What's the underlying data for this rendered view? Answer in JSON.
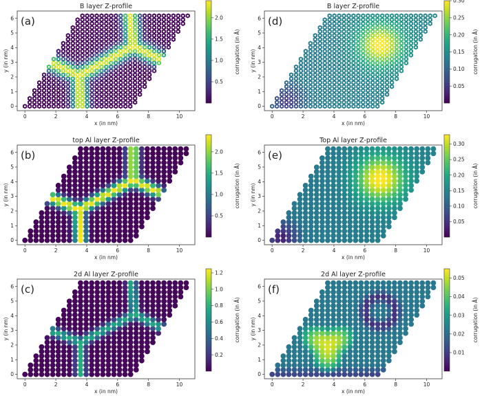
{
  "figure": {
    "description_panels": 6,
    "colormap": "viridis"
  },
  "chart_data": [
    {
      "type": "heatmap",
      "label": "(a)",
      "title": "B layer Z-profile",
      "xlabel": "x (in nm)",
      "ylabel": "y (in nm)",
      "xlim": [
        -0.5,
        11
      ],
      "ylim": [
        -0.3,
        6.5
      ],
      "xticks": [
        "0",
        "2",
        "4",
        "6",
        "8",
        "10"
      ],
      "yticks": [
        "0",
        "1",
        "2",
        "3",
        "4",
        "5",
        "6"
      ],
      "colorbar_label": "corrugation (in Å)",
      "colorbar_range": [
        0.0,
        2.4
      ],
      "colorbar_ticks": [
        "0.5",
        "1.0",
        "1.5",
        "2.0"
      ],
      "pattern": "lines",
      "lattice_spacing": 0.31,
      "marker": "hex",
      "field_max": 2.3,
      "line_width": 0.38,
      "node_center": [
        3.5,
        2.1
      ],
      "arms": [
        [
          3.5,
          2.1,
          3.6,
          -0.2
        ],
        [
          3.5,
          2.1,
          1.6,
          3.0
        ],
        [
          3.5,
          2.1,
          7.0,
          4.1
        ],
        [
          7.0,
          4.1,
          6.8,
          6.4
        ],
        [
          7.0,
          4.1,
          8.8,
          3.2
        ]
      ]
    },
    {
      "type": "heatmap",
      "label": "(b)",
      "title": "top Al layer Z-profile",
      "xlabel": "x (in nm)",
      "ylabel": "y (in nm)",
      "xlim": [
        -0.5,
        11
      ],
      "ylim": [
        -0.3,
        6.5
      ],
      "xticks": [
        "0",
        "2",
        "4",
        "6",
        "8",
        "10"
      ],
      "yticks": [
        "0",
        "1",
        "2",
        "3",
        "4",
        "5",
        "6"
      ],
      "colorbar_label": "corrugation (in Å)",
      "colorbar_range": [
        0.0,
        2.4
      ],
      "colorbar_ticks": [
        "0.5",
        "1.0",
        "1.5",
        "2.0"
      ],
      "pattern": "lines",
      "lattice_spacing": 0.36,
      "marker": "circle",
      "field_max": 2.35,
      "line_width": 0.28,
      "node_center": [
        3.5,
        2.1
      ],
      "arms": [
        [
          3.5,
          2.1,
          3.6,
          -0.2
        ],
        [
          3.5,
          2.1,
          1.7,
          2.9
        ],
        [
          3.5,
          2.1,
          7.0,
          4.1
        ],
        [
          7.0,
          4.1,
          7.0,
          6.3
        ],
        [
          7.0,
          4.1,
          8.6,
          3.3
        ]
      ]
    },
    {
      "type": "heatmap",
      "label": "(c)",
      "title": "2d Al layer Z-profile",
      "xlabel": "x (in nm)",
      "ylabel": "y (in nm)",
      "xlim": [
        -0.5,
        11
      ],
      "ylim": [
        -0.3,
        6.5
      ],
      "xticks": [
        "0",
        "2",
        "4",
        "6",
        "8",
        "10"
      ],
      "yticks": [
        "0",
        "1",
        "2",
        "3",
        "4",
        "5",
        "6"
      ],
      "colorbar_label": "corrugation (in Å)",
      "colorbar_range": [
        0.0,
        1.25
      ],
      "colorbar_ticks": [
        "0.2",
        "0.4",
        "0.6",
        "0.8",
        "1.0",
        "1.2"
      ],
      "pattern": "lines",
      "lattice_spacing": 0.36,
      "marker": "circle",
      "field_max": 0.75,
      "line_width": 0.22,
      "node_center": [
        3.6,
        2.2
      ],
      "arms": [
        [
          3.6,
          2.2,
          3.6,
          -0.2
        ],
        [
          3.6,
          2.2,
          1.6,
          3.0
        ],
        [
          3.6,
          2.2,
          7.1,
          4.1
        ],
        [
          7.1,
          4.1,
          6.9,
          6.3
        ],
        [
          7.1,
          4.1,
          8.8,
          3.2
        ]
      ]
    },
    {
      "type": "heatmap",
      "label": "(d)",
      "title": "B layer Z-profile",
      "xlabel": "x (in nm)",
      "ylabel": "y (in nm)",
      "xlim": [
        -0.5,
        11
      ],
      "ylim": [
        -0.3,
        6.5
      ],
      "xticks": [
        "0",
        "2",
        "4",
        "6",
        "8",
        "10"
      ],
      "yticks": [
        "0",
        "1",
        "2",
        "3",
        "4",
        "5",
        "6"
      ],
      "colorbar_label": "corrugation (in Å)",
      "colorbar_range": [
        0.0,
        0.3
      ],
      "colorbar_ticks": [
        "0.05",
        "0.10",
        "0.15",
        "0.20",
        "0.25",
        "0.30"
      ],
      "pattern": "bump",
      "lattice_spacing": 0.31,
      "marker": "hex",
      "bump_center": [
        7.0,
        4.2
      ],
      "bump_sigma": 1.0,
      "bump_base": 0.12,
      "bump_peak": 0.3,
      "low_center": [
        1.0,
        0.4
      ],
      "low_value": 0.04
    },
    {
      "type": "heatmap",
      "label": "(e)",
      "title": "Top Al layer Z-profile",
      "xlabel": "x (in nm)",
      "ylabel": "y (in nm)",
      "xlim": [
        -0.5,
        11
      ],
      "ylim": [
        -0.3,
        6.5
      ],
      "xticks": [
        "0",
        "2",
        "4",
        "6",
        "8",
        "10"
      ],
      "yticks": [
        "0",
        "1",
        "2",
        "3",
        "4",
        "5",
        "6"
      ],
      "colorbar_label": "corrugation (in Å)",
      "colorbar_range": [
        0.0,
        0.33
      ],
      "colorbar_ticks": [
        "0.05",
        "0.10",
        "0.15",
        "0.20",
        "0.25",
        "0.30"
      ],
      "pattern": "bump",
      "lattice_spacing": 0.36,
      "marker": "circle",
      "bump_center": [
        7.0,
        4.2
      ],
      "bump_sigma": 1.1,
      "bump_base": 0.13,
      "bump_peak": 0.33,
      "low_center": [
        0.6,
        0.2
      ],
      "low_value": 0.02
    },
    {
      "type": "heatmap",
      "label": "(f)",
      "title": "2d Al layer Z-profile",
      "xlabel": "x (in nm)",
      "ylabel": "y (in nm)",
      "xlim": [
        -0.5,
        11
      ],
      "ylim": [
        -0.3,
        6.5
      ],
      "xticks": [
        "0",
        "2",
        "4",
        "6",
        "8",
        "10"
      ],
      "yticks": [
        "0",
        "1",
        "2",
        "3",
        "4",
        "5",
        "6"
      ],
      "colorbar_label": "corrugation (in Å)",
      "colorbar_range": [
        0.0,
        0.055
      ],
      "colorbar_ticks": [
        "0.01",
        "0.02",
        "0.03",
        "0.04",
        "0.05"
      ],
      "pattern": "triangle",
      "lattice_spacing": 0.36,
      "marker": "circle",
      "tri_center": [
        3.6,
        2.0
      ],
      "tri_radius": 1.7,
      "tri_peak": 0.052,
      "base_value": 0.022,
      "ring_center": [
        7.0,
        4.3
      ],
      "ring_radius": 1.0,
      "ring_value": 0.008
    }
  ]
}
